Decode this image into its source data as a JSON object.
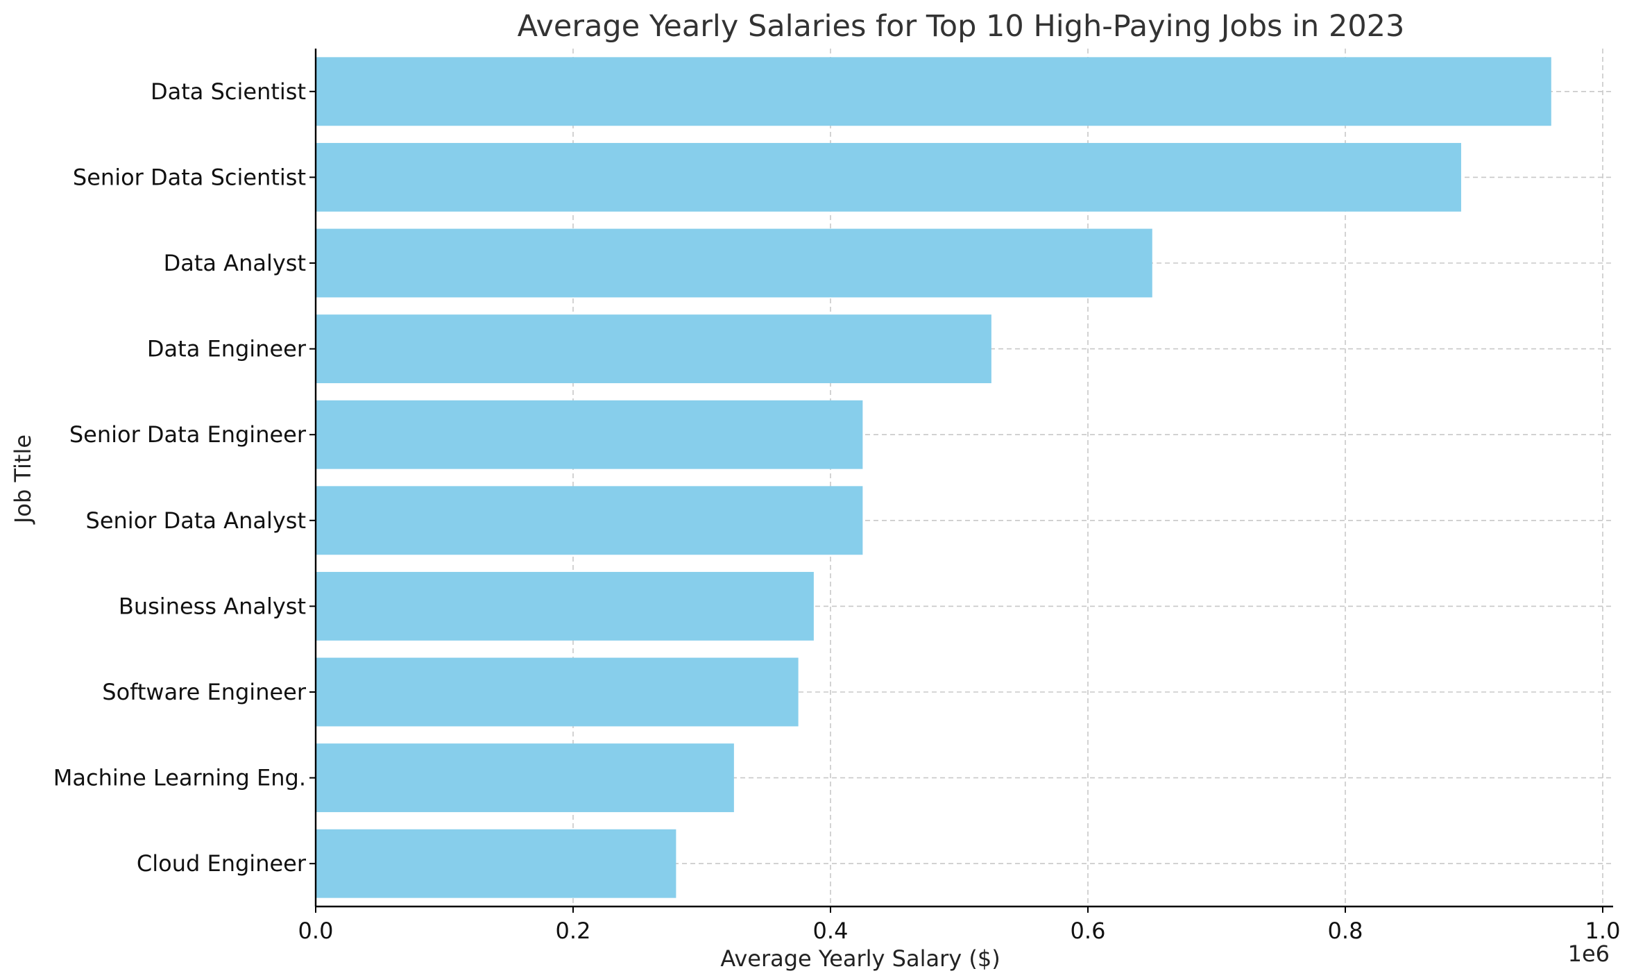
{
  "chart_data": {
    "type": "bar",
    "orientation": "horizontal",
    "title": "Average Yearly Salaries for Top 10 High-Paying Jobs in 2023",
    "xlabel": "Average Yearly Salary ($)",
    "ylabel": "Job Title",
    "x_offset_label": "1e6",
    "xlim": [
      0,
      1.0
    ],
    "x_ticks": [
      0.0,
      0.2,
      0.4,
      0.6,
      0.8,
      1.0
    ],
    "x_tick_labels": [
      "0.0",
      "0.2",
      "0.4",
      "0.6",
      "0.8",
      "1.0"
    ],
    "categories": [
      "Data Scientist",
      "Senior Data Scientist",
      "Data Analyst",
      "Data Engineer",
      "Senior Data Engineer",
      "Senior Data Analyst",
      "Business Analyst",
      "Software Engineer",
      "Machine Learning Eng.",
      "Cloud Engineer"
    ],
    "values": [
      960000,
      890000,
      650000,
      525000,
      425000,
      425000,
      387000,
      375000,
      325000,
      280000
    ],
    "bar_color": "#87ceeb",
    "grid": true
  }
}
